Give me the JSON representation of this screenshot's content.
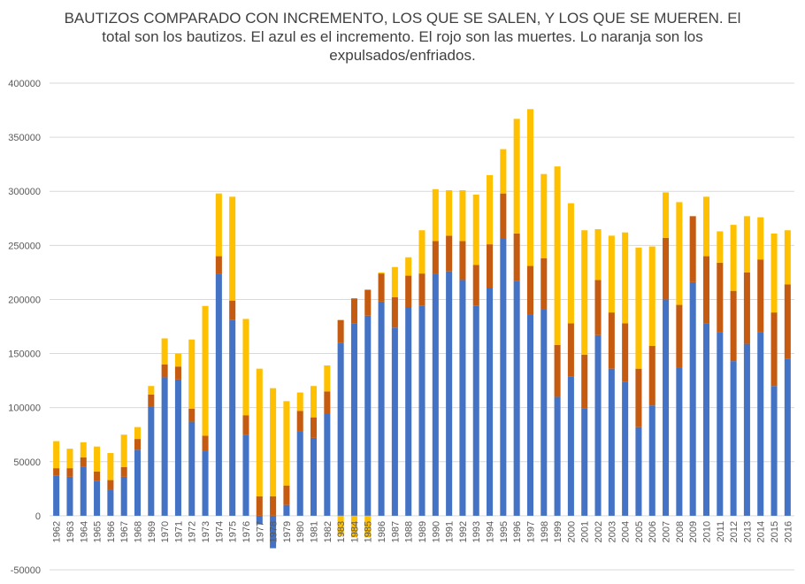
{
  "chart_data": {
    "type": "bar",
    "stacked": true,
    "title": "BAUTIZOS COMPARADO CON INCREMENTO, LOS QUE SE SALEN, Y LOS QUE SE MUEREN. El total son los bautizos. El azul es el incremento. El rojo son las muertes. Lo naranja son los expulsados/enfriados.",
    "xlabel": "",
    "ylabel": "",
    "ylim": [
      -50000,
      400000
    ],
    "yticks": [
      -50000,
      0,
      50000,
      100000,
      150000,
      200000,
      250000,
      300000,
      350000,
      400000
    ],
    "ytick_labels": [
      "-50000",
      "0",
      "50000",
      "100000",
      "150000",
      "200000",
      "250000",
      "300000",
      "350000",
      "400000"
    ],
    "grid": true,
    "colors": {
      "incremento": "#4472c4",
      "muertes": "#c55a11",
      "expulsados": "#ffc000"
    },
    "categories": [
      "1962",
      "1963",
      "1964",
      "1965",
      "1966",
      "1967",
      "1968",
      "1969",
      "1970",
      "1971",
      "1972",
      "1973",
      "1974",
      "1975",
      "1976",
      "1977",
      "1978",
      "1979",
      "1980",
      "1981",
      "1982",
      "1983",
      "1984",
      "1985",
      "1986",
      "1987",
      "1988",
      "1989",
      "1990",
      "1991",
      "1992",
      "1993",
      "1994",
      "1995",
      "1996",
      "1997",
      "1998",
      "1999",
      "2000",
      "2001",
      "2002",
      "2003",
      "2004",
      "2005",
      "2006",
      "2007",
      "2008",
      "2009",
      "2010",
      "2011",
      "2012",
      "2013",
      "2014",
      "2015",
      "2016"
    ],
    "series": [
      {
        "name": "Incremento",
        "color": "#4472c4",
        "values": [
          37000,
          36000,
          45000,
          32000,
          24000,
          36000,
          61000,
          101000,
          128000,
          126000,
          87000,
          60000,
          224000,
          181000,
          75000,
          -8000,
          -30000,
          10000,
          78000,
          72000,
          94000,
          160000,
          178000,
          185000,
          198000,
          174000,
          193000,
          194000,
          224000,
          226000,
          218000,
          194000,
          211000,
          256000,
          217000,
          186000,
          191000,
          110000,
          129000,
          99000,
          167000,
          136000,
          124000,
          82000,
          102000,
          200000,
          137000,
          216000,
          178000,
          170000,
          143000,
          159000,
          170000,
          120000,
          145000
        ]
      },
      {
        "name": "Muertes",
        "color": "#c55a11",
        "values": [
          7000,
          8000,
          9000,
          9000,
          9000,
          9000,
          10000,
          11000,
          12000,
          12000,
          12000,
          14000,
          16000,
          18000,
          18000,
          18000,
          18000,
          18000,
          19000,
          19000,
          21000,
          21000,
          23000,
          24000,
          26000,
          28000,
          29000,
          30000,
          30000,
          33000,
          36000,
          38000,
          40000,
          42000,
          44000,
          45000,
          47000,
          48000,
          49000,
          50000,
          51000,
          52000,
          54000,
          54000,
          55000,
          57000,
          58000,
          61000,
          62000,
          64000,
          65000,
          66000,
          67000,
          68000,
          69000
        ]
      },
      {
        "name": "Expulsados/enfriados",
        "color": "#ffc000",
        "values": [
          25000,
          18000,
          14000,
          23000,
          25000,
          30000,
          11000,
          8000,
          24000,
          12000,
          64000,
          120000,
          58000,
          96000,
          89000,
          118000,
          100000,
          78000,
          17000,
          29000,
          24000,
          -18000,
          -20000,
          -20000,
          1000,
          28000,
          17000,
          40000,
          48000,
          42000,
          47000,
          65000,
          64000,
          41000,
          106000,
          145000,
          78000,
          165000,
          111000,
          115000,
          47000,
          71000,
          84000,
          112000,
          92000,
          42000,
          95000,
          0,
          55000,
          29000,
          61000,
          52000,
          39000,
          73000,
          50000
        ]
      }
    ]
  }
}
